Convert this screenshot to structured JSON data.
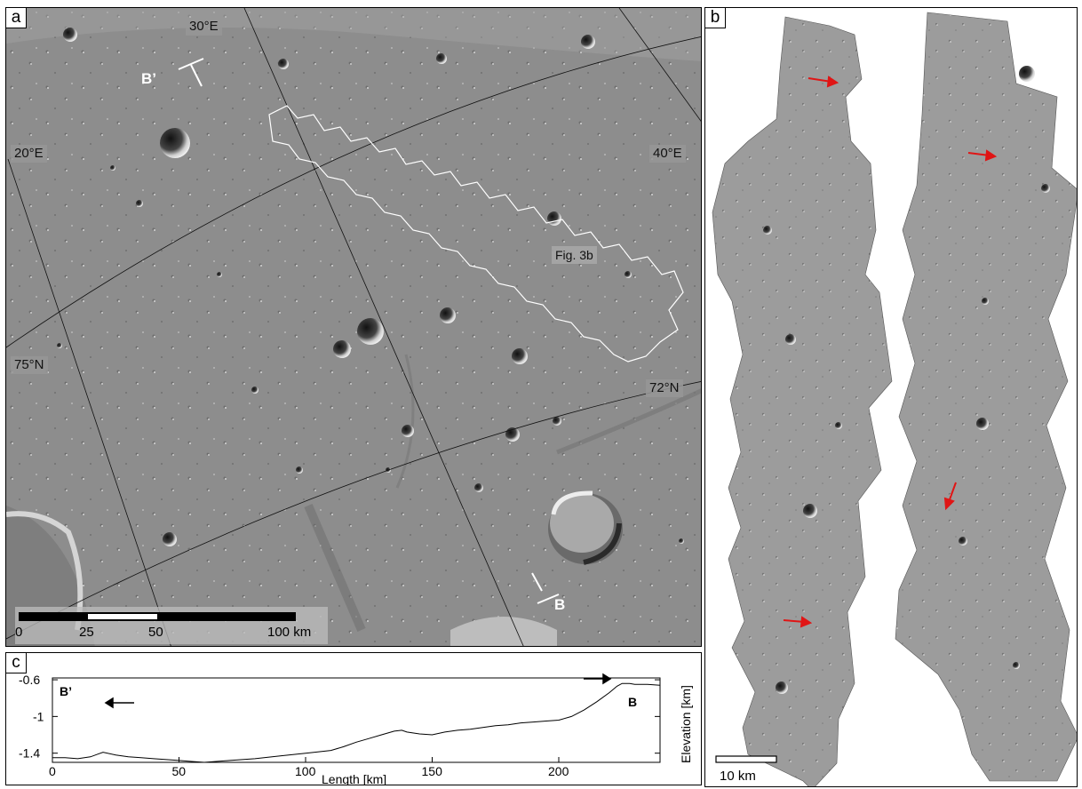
{
  "panels": {
    "a": {
      "letter": "a",
      "labels": {
        "lon_30": "30°E",
        "lon_20": "20°E",
        "lon_40": "40°E",
        "lat_75": "75°N",
        "lat_72": "72°N",
        "fig3b": "Fig. 3b",
        "profile_start": "B’",
        "profile_end": "B"
      },
      "scale_bar": {
        "ticks": [
          "0",
          "25",
          "50",
          "100 km"
        ]
      }
    },
    "b": {
      "letter": "b",
      "scale_bar_label": "10 km"
    },
    "c": {
      "letter": "c",
      "label_start": "B’",
      "label_end": "B",
      "y_axis_label": "Elevation [km]"
    }
  },
  "chart_data": {
    "type": "line",
    "title": "",
    "xlabel": "Length [km]",
    "ylabel": "Elevation [km]",
    "xlim": [
      0,
      240
    ],
    "ylim": [
      -1.5,
      -0.58
    ],
    "x_ticks": [
      "0",
      "50",
      "100",
      "150",
      "200"
    ],
    "y_ticks": [
      "-0.6",
      "-1",
      "-1.4"
    ],
    "y_tick_values": [
      -0.6,
      -1.0,
      -1.4
    ],
    "series": [
      {
        "x": [
          0,
          5,
          10,
          15,
          18,
          20,
          25,
          30,
          35,
          40,
          45,
          50,
          55,
          60,
          70,
          80,
          90,
          100,
          110,
          115,
          120,
          125,
          130,
          135,
          138,
          140,
          145,
          150,
          155,
          160,
          165,
          170,
          175,
          180,
          185,
          190,
          195,
          200,
          205,
          210,
          215,
          220,
          223,
          225,
          228,
          230,
          235,
          240
        ],
        "y": [
          -1.45,
          -1.45,
          -1.46,
          -1.44,
          -1.41,
          -1.39,
          -1.42,
          -1.44,
          -1.45,
          -1.46,
          -1.47,
          -1.48,
          -1.49,
          -1.5,
          -1.48,
          -1.46,
          -1.43,
          -1.4,
          -1.37,
          -1.33,
          -1.28,
          -1.24,
          -1.2,
          -1.16,
          -1.15,
          -1.17,
          -1.19,
          -1.2,
          -1.17,
          -1.15,
          -1.14,
          -1.12,
          -1.1,
          -1.09,
          -1.07,
          -1.06,
          -1.05,
          -1.04,
          -1.0,
          -0.93,
          -0.84,
          -0.74,
          -0.67,
          -0.64,
          -0.64,
          -0.65,
          -0.65,
          -0.66
        ]
      }
    ]
  }
}
